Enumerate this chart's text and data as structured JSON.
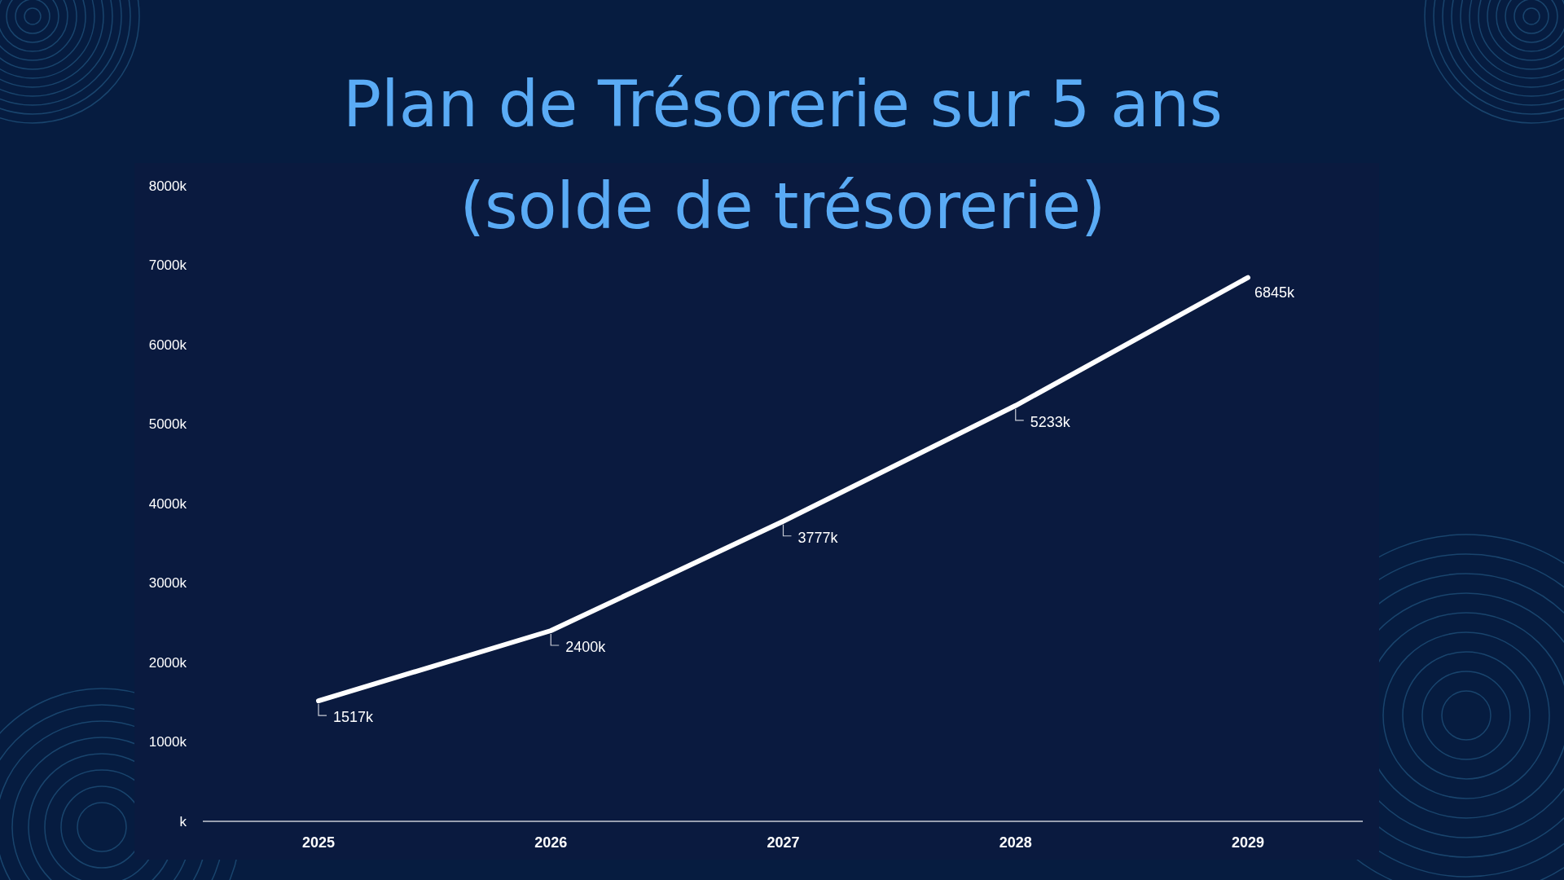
{
  "chart_data": {
    "type": "line",
    "title": "Plan de Trésorerie sur 5 ans\n(solde de trésorerie)",
    "categories": [
      "2025",
      "2026",
      "2027",
      "2028",
      "2029"
    ],
    "series": [
      {
        "color": "#ffffff",
        "values": [
          1517,
          2400,
          3777,
          5233,
          6845
        ],
        "value_labels": [
          "1517k",
          "2400k",
          "3777k",
          "5233k",
          "6845k"
        ]
      }
    ],
    "ylim": [
      0,
      8000
    ],
    "yticks": [
      {
        "value": 0,
        "label": "k"
      },
      {
        "value": 1000,
        "label": "1000k"
      },
      {
        "value": 2000,
        "label": "2000k"
      },
      {
        "value": 3000,
        "label": "3000k"
      },
      {
        "value": 4000,
        "label": "4000k"
      },
      {
        "value": 5000,
        "label": "5000k"
      },
      {
        "value": 6000,
        "label": "6000k"
      },
      {
        "value": 7000,
        "label": "7000k"
      },
      {
        "value": 8000,
        "label": "8000k"
      }
    ],
    "grid": false,
    "marker": "none",
    "line_style": "solid"
  }
}
